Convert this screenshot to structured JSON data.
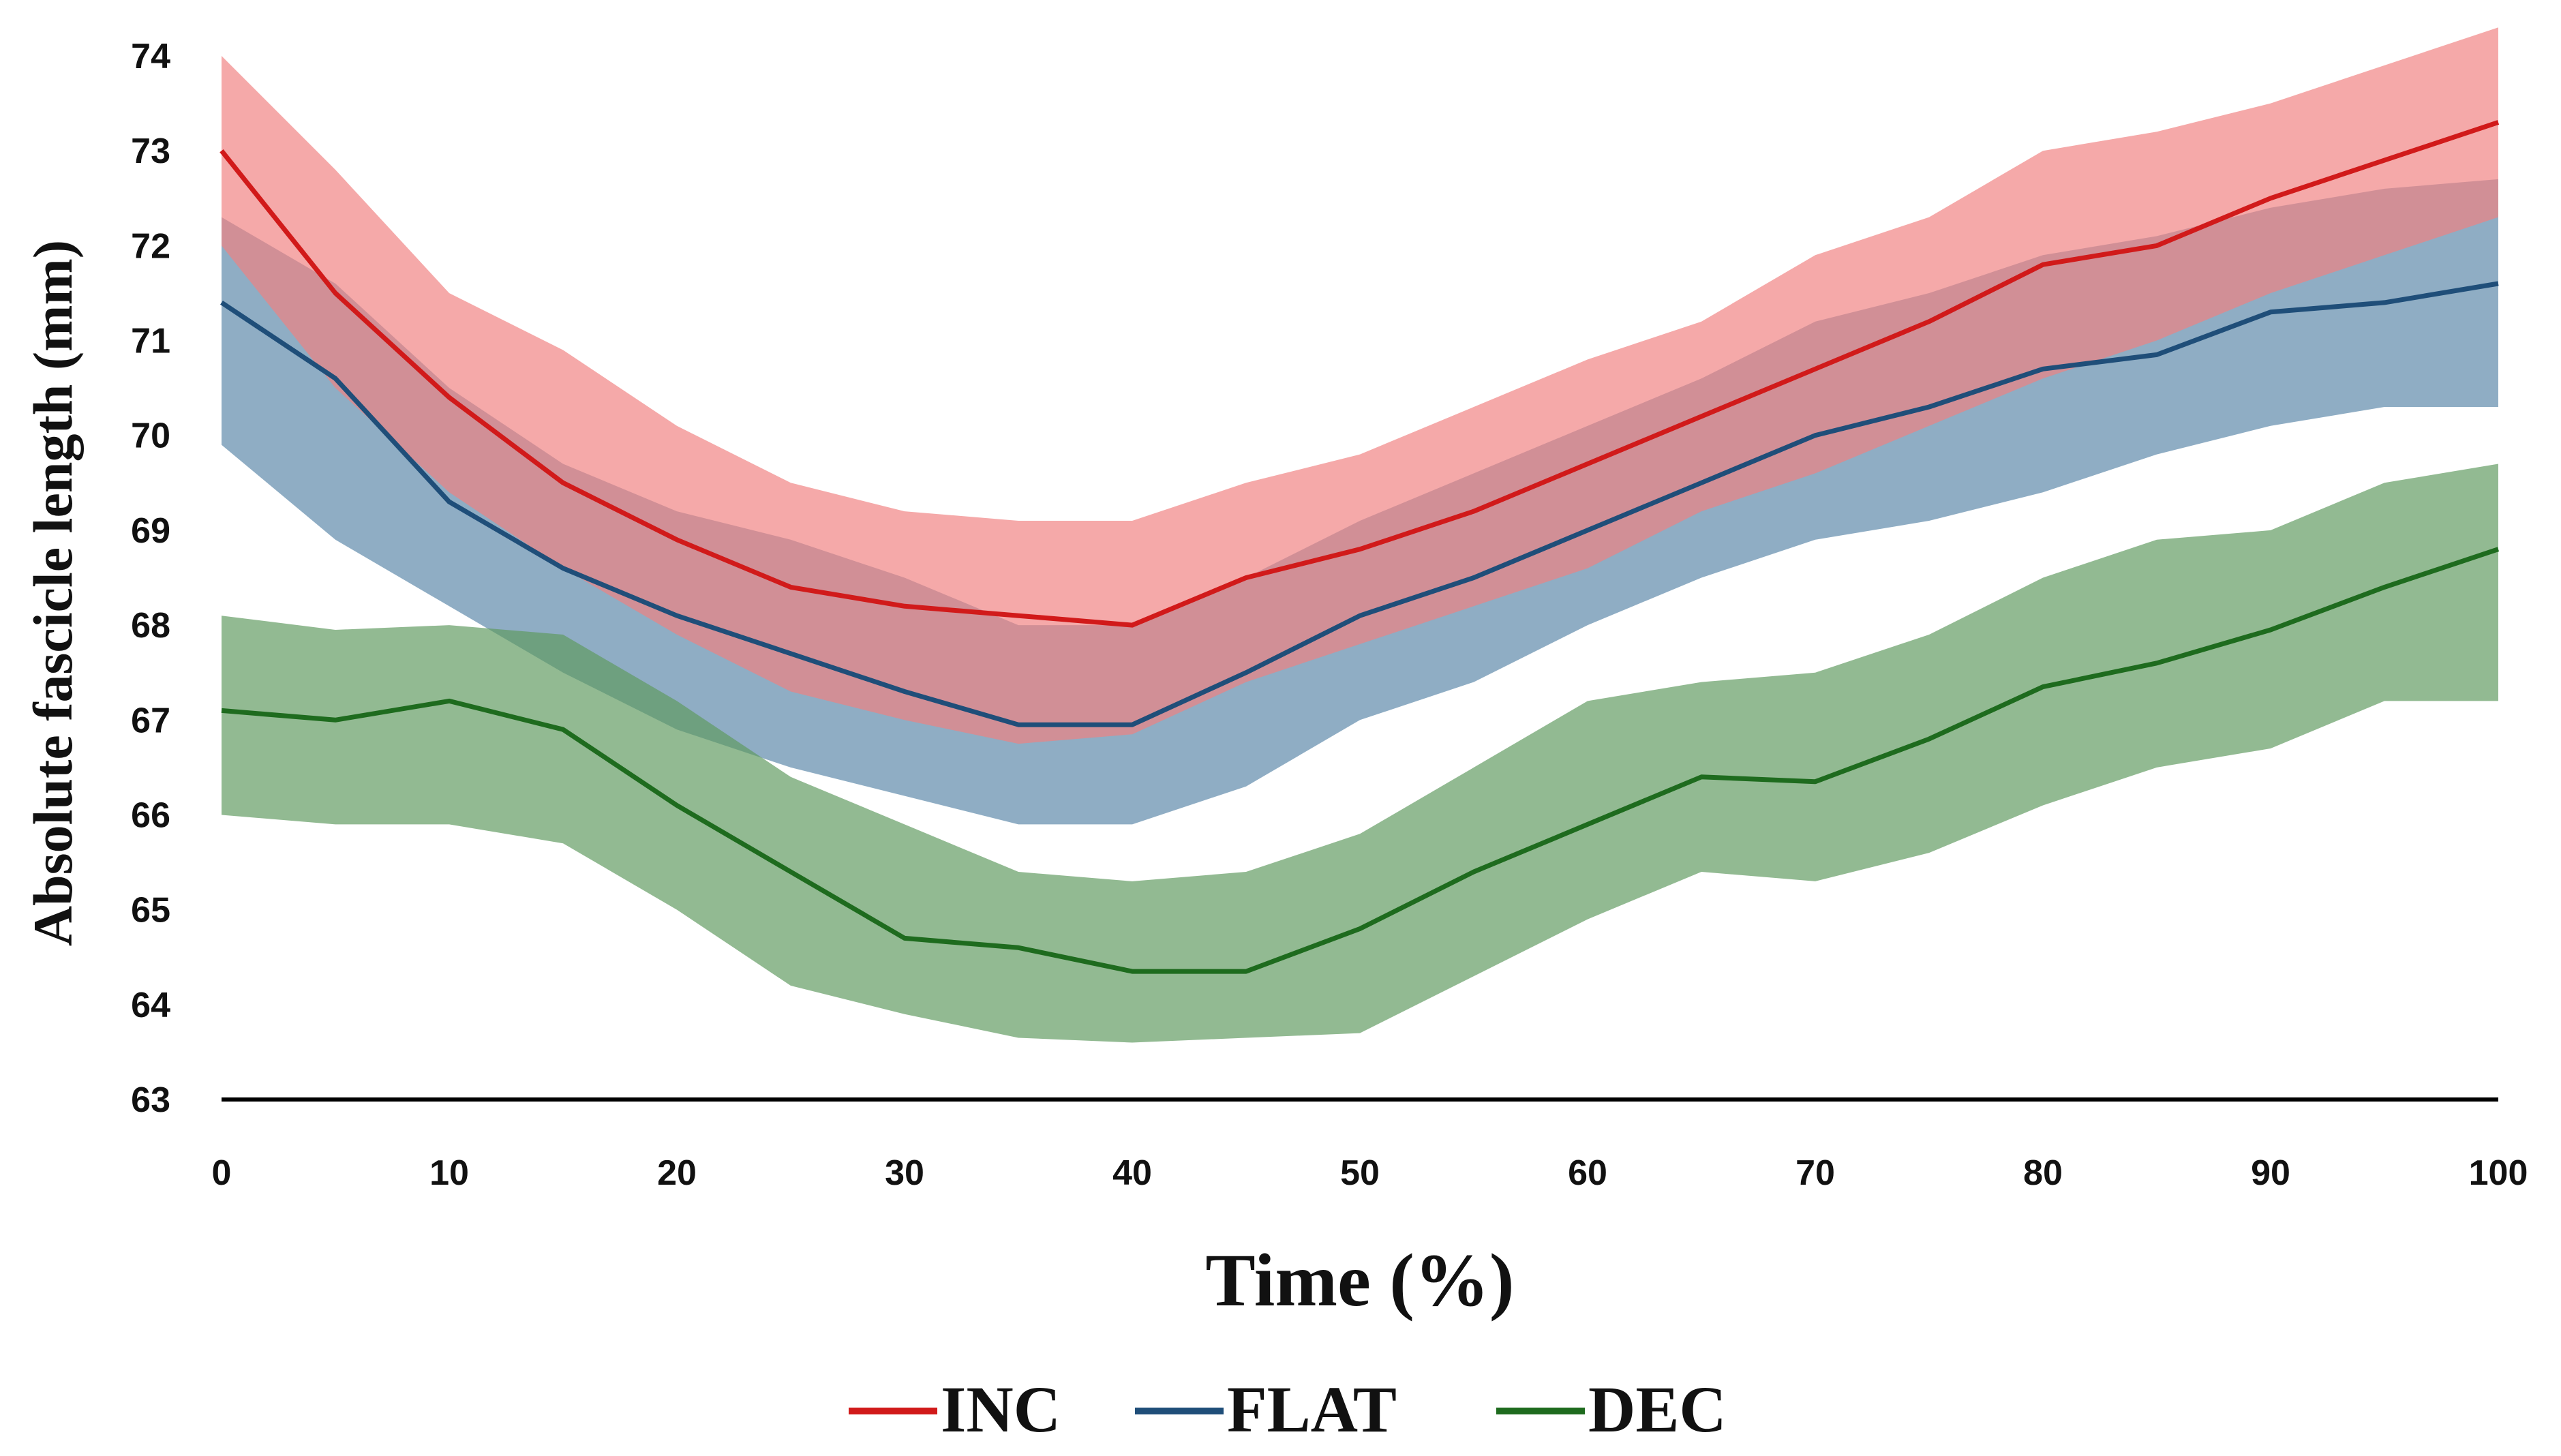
{
  "chart_data": {
    "type": "line",
    "title": "",
    "xlabel": "Time (%)",
    "ylabel": "Absolute fascicle length (mm)",
    "xlim": [
      0,
      100
    ],
    "ylim": [
      63,
      74
    ],
    "xticks": [
      0,
      10,
      20,
      30,
      40,
      50,
      60,
      70,
      80,
      90,
      100
    ],
    "yticks": [
      63,
      64,
      65,
      66,
      67,
      68,
      69,
      70,
      71,
      72,
      73,
      74
    ],
    "grid": false,
    "legend_position": "bottom-center",
    "x": [
      0,
      5,
      10,
      15,
      20,
      25,
      30,
      35,
      40,
      45,
      50,
      55,
      60,
      65,
      70,
      75,
      80,
      85,
      90,
      95,
      100
    ],
    "series": [
      {
        "name": "FLAT",
        "color": "#1f4e79",
        "band_color": "#5a86a8",
        "mean": [
          71.4,
          70.6,
          69.3,
          68.6,
          68.1,
          67.7,
          67.3,
          66.95,
          66.95,
          67.5,
          68.1,
          68.5,
          69.0,
          69.5,
          70.0,
          70.3,
          70.7,
          70.85,
          71.3,
          71.4,
          71.6
        ],
        "upper": [
          72.3,
          71.6,
          70.5,
          69.7,
          69.2,
          68.9,
          68.5,
          68.0,
          68.0,
          68.5,
          69.1,
          69.6,
          70.1,
          70.6,
          71.2,
          71.5,
          71.9,
          72.1,
          72.4,
          72.6,
          72.7
        ],
        "lower": [
          69.9,
          68.9,
          68.2,
          67.5,
          66.9,
          66.5,
          66.2,
          65.9,
          65.9,
          66.3,
          67.0,
          67.4,
          68.0,
          68.5,
          68.9,
          69.1,
          69.4,
          69.8,
          70.1,
          70.3,
          70.3
        ]
      },
      {
        "name": "INC",
        "color": "#d11a1a",
        "band_color": "#f08080",
        "mean": [
          73.0,
          71.5,
          70.4,
          69.5,
          68.9,
          68.4,
          68.2,
          68.1,
          68.0,
          68.5,
          68.8,
          69.2,
          69.7,
          70.2,
          70.7,
          71.2,
          71.8,
          72.0,
          72.5,
          72.9,
          73.3
        ],
        "upper": [
          74.0,
          72.8,
          71.5,
          70.9,
          70.1,
          69.5,
          69.2,
          69.1,
          69.1,
          69.5,
          69.8,
          70.3,
          70.8,
          71.2,
          71.9,
          72.3,
          73.0,
          73.2,
          73.5,
          73.9,
          74.3
        ],
        "lower": [
          72.0,
          70.5,
          69.4,
          68.6,
          67.9,
          67.3,
          67.0,
          66.75,
          66.85,
          67.4,
          67.8,
          68.2,
          68.6,
          69.2,
          69.6,
          70.1,
          70.6,
          71.0,
          71.5,
          71.9,
          72.3
        ]
      },
      {
        "name": "DEC",
        "color": "#1e6b1e",
        "band_color": "#5f9a5f",
        "mean": [
          67.1,
          67.0,
          67.2,
          66.9,
          66.1,
          65.4,
          64.7,
          64.6,
          64.35,
          64.35,
          64.8,
          65.4,
          65.9,
          66.4,
          66.35,
          66.8,
          67.35,
          67.6,
          67.95,
          68.4,
          68.8
        ],
        "upper": [
          68.1,
          67.95,
          68.0,
          67.9,
          67.2,
          66.4,
          65.9,
          65.4,
          65.3,
          65.4,
          65.8,
          66.5,
          67.2,
          67.4,
          67.5,
          67.9,
          68.5,
          68.9,
          69.0,
          69.5,
          69.7
        ],
        "lower": [
          66.0,
          65.9,
          65.9,
          65.7,
          65.0,
          64.2,
          63.9,
          63.65,
          63.6,
          63.65,
          63.7,
          64.3,
          64.9,
          65.4,
          65.3,
          65.6,
          66.1,
          66.5,
          66.7,
          67.2,
          67.2
        ]
      }
    ],
    "legend": [
      {
        "name": "INC",
        "color": "#d11a1a"
      },
      {
        "name": "FLAT",
        "color": "#1f4e79"
      },
      {
        "name": "DEC",
        "color": "#1e6b1e"
      }
    ]
  }
}
